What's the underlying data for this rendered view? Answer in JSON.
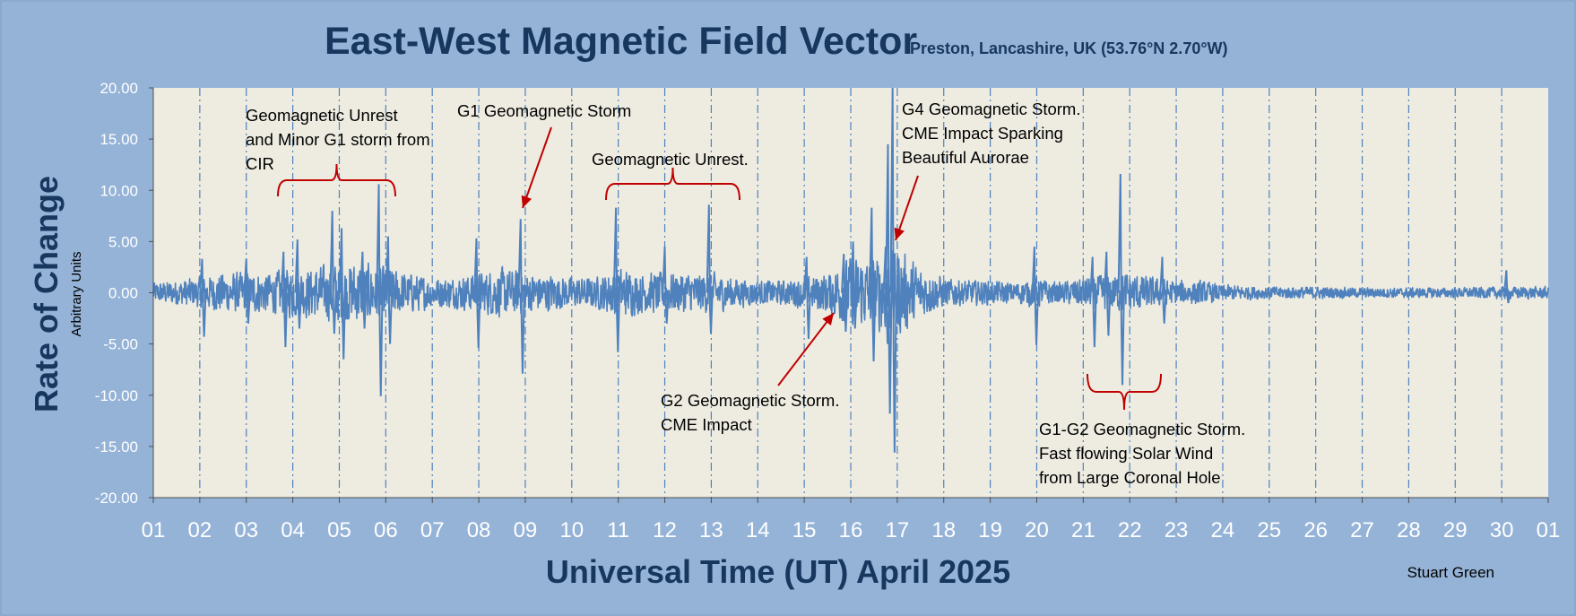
{
  "chart_data": {
    "type": "line",
    "title": "East-West Magnetic Field Vector",
    "subtitle": "Preston, Lancashire, UK  (53.76°N 2.70°W)",
    "ylabel": "Rate of Change",
    "ylabel_sub": "Arbitrary Units",
    "xlabel": "Universal Time (UT) April 2025",
    "credit": "Stuart Green",
    "ylim": [
      -20,
      20
    ],
    "yticks": [
      20,
      15,
      10,
      5,
      0,
      -5,
      -10,
      -15,
      -20
    ],
    "ytick_labels": [
      "20.00",
      "15.00",
      "10.00",
      "5.00",
      "0.00",
      "-5.00",
      "-10.00",
      "-15.00",
      "-20.00"
    ],
    "xlim": [
      0,
      30
    ],
    "xtick_labels": [
      "01",
      "02",
      "03",
      "04",
      "05",
      "06",
      "07",
      "08",
      "09",
      "10",
      "11",
      "12",
      "13",
      "14",
      "15",
      "16",
      "17",
      "18",
      "19",
      "20",
      "21",
      "22",
      "23",
      "24",
      "25",
      "26",
      "27",
      "28",
      "29",
      "30",
      "01"
    ],
    "grid": "vertical dash-dot at each day",
    "colors": {
      "series": "#4f81bd",
      "plot_bg": "#eeece1",
      "page_bg": "#95b3d7",
      "title": "#17375e",
      "annotation": "#c00000",
      "grid": "#4f81bd"
    },
    "series_envelope": {
      "x_days": [
        0.0,
        1.0,
        1.5,
        2.0,
        2.5,
        3.0,
        3.5,
        4.0,
        4.5,
        5.0,
        5.5,
        6.0,
        6.5,
        7.0,
        7.5,
        8.0,
        8.5,
        9.0,
        9.5,
        10.0,
        10.5,
        11.0,
        11.5,
        12.0,
        12.5,
        13.0,
        13.5,
        14.0,
        14.5,
        15.0,
        15.5,
        16.0,
        16.5,
        17.0,
        17.5,
        18.0,
        18.5,
        19.0,
        19.5,
        20.0,
        20.5,
        21.0,
        21.5,
        22.0,
        22.5,
        23.0,
        24.0,
        25.0,
        26.0,
        27.0,
        28.0,
        29.0,
        30.0
      ],
      "amplitude": [
        1.0,
        1.5,
        2.0,
        2.0,
        2.0,
        2.5,
        2.5,
        3.0,
        3.0,
        2.5,
        2.0,
        1.5,
        1.5,
        2.0,
        2.5,
        2.0,
        1.8,
        1.5,
        1.5,
        2.5,
        2.0,
        2.0,
        2.0,
        2.0,
        1.5,
        1.2,
        1.2,
        1.5,
        2.0,
        3.5,
        3.5,
        4.5,
        2.5,
        1.5,
        1.2,
        1.2,
        1.0,
        1.5,
        1.0,
        1.5,
        1.8,
        2.0,
        1.5,
        1.2,
        1.2,
        0.8,
        0.6,
        0.6,
        0.5,
        0.5,
        0.5,
        0.6,
        0.6
      ]
    },
    "spikes": [
      {
        "day": 1.05,
        "high": 3.3,
        "low": -4.3
      },
      {
        "day": 2.0,
        "high": 3.3,
        "low": -3.0
      },
      {
        "day": 2.8,
        "high": 4.0,
        "low": -5.3
      },
      {
        "day": 3.1,
        "high": 5.2,
        "low": -3.5
      },
      {
        "day": 3.85,
        "high": 8.0,
        "low": -4.0
      },
      {
        "day": 4.05,
        "high": 6.3,
        "low": -6.5
      },
      {
        "day": 4.5,
        "high": 4.0,
        "low": -3.5
      },
      {
        "day": 4.85,
        "high": 10.6,
        "low": -10.1
      },
      {
        "day": 5.05,
        "high": 5.5,
        "low": -5.0
      },
      {
        "day": 6.95,
        "high": 5.3,
        "low": -5.4
      },
      {
        "day": 7.9,
        "high": 7.2,
        "low": -7.9
      },
      {
        "day": 9.95,
        "high": 8.3,
        "low": -5.8
      },
      {
        "day": 11.0,
        "high": 4.5,
        "low": -3.0
      },
      {
        "day": 11.95,
        "high": 8.6,
        "low": -4.0
      },
      {
        "day": 14.05,
        "high": 3.5,
        "low": -4.5
      },
      {
        "day": 14.85,
        "high": 3.8,
        "low": -3.8
      },
      {
        "day": 15.05,
        "high": 5.0,
        "low": -3.5
      },
      {
        "day": 15.45,
        "high": 8.3,
        "low": -6.7
      },
      {
        "day": 15.75,
        "high": 4.5,
        "low": -5.0
      },
      {
        "day": 15.9,
        "high": 20.0,
        "low": -15.6
      },
      {
        "day": 15.8,
        "high": 14.5,
        "low": -11.8
      },
      {
        "day": 18.95,
        "high": 4.5,
        "low": -5.1
      },
      {
        "day": 20.2,
        "high": 3.5,
        "low": -5.3
      },
      {
        "day": 20.5,
        "high": 4.0,
        "low": -4.2
      },
      {
        "day": 20.8,
        "high": 11.6,
        "low": -9.0
      },
      {
        "day": 21.7,
        "high": 3.5,
        "low": -3.0
      },
      {
        "day": 29.1,
        "high": 2.2,
        "low": -1.0
      }
    ],
    "annotations": [
      {
        "id": "a1",
        "lines": [
          "Geomagnetic Unrest",
          "and Minor G1 storm from",
          "CIR"
        ]
      },
      {
        "id": "a2",
        "lines": [
          "G1 Geomagnetic Storm"
        ]
      },
      {
        "id": "a3",
        "lines": [
          "Geomagnetic Unrest."
        ]
      },
      {
        "id": "a4",
        "lines": [
          "G4 Geomagnetic Storm.",
          "CME Impact Sparking",
          "Beautiful Aurorae"
        ]
      },
      {
        "id": "a5",
        "lines": [
          "G2 Geomagnetic Storm.",
          "CME Impact"
        ]
      },
      {
        "id": "a6",
        "lines": [
          "G1-G2 Geomagnetic Storm.",
          "Fast flowing Solar Wind",
          "from Large Coronal Hole"
        ]
      }
    ]
  }
}
